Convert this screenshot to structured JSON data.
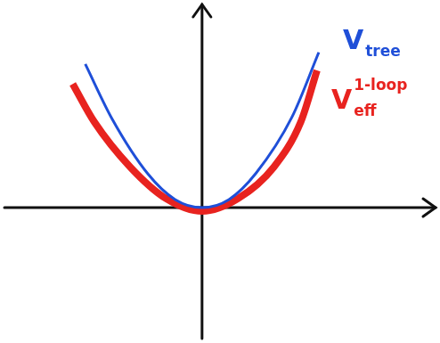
{
  "chart_data": {
    "type": "line",
    "xlim": [
      -2.2,
      2.6
    ],
    "ylim": [
      -1.45,
      2.25
    ],
    "tick_labels": false,
    "grid": false,
    "series": [
      {
        "name": "V",
        "subscript": "tree",
        "color": "#1f4fd8",
        "marker": "none",
        "line_style": "solid",
        "x": [
          -1.3,
          -1.0,
          -0.6,
          -0.3,
          0.0,
          0.3,
          0.6,
          1.0,
          1.3
        ],
        "values": [
          1.59,
          0.98,
          0.37,
          0.09,
          0.0,
          0.09,
          0.38,
          1.0,
          1.72
        ]
      },
      {
        "name": "V",
        "subscript": "eff",
        "superscript": "1-loop",
        "color": "#e8231f",
        "marker": "none",
        "line_style": "solid",
        "x": [
          -1.44,
          -1.2,
          -0.8,
          -0.4,
          0.0,
          0.4,
          0.8,
          1.1,
          1.28
        ],
        "values": [
          1.37,
          0.95,
          0.45,
          0.1,
          -0.04,
          0.1,
          0.45,
          0.95,
          1.52
        ]
      }
    ]
  }
}
